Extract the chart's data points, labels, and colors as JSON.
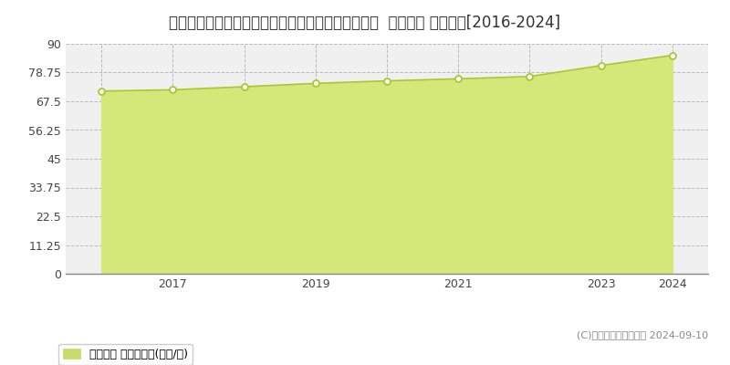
{
  "title": "埼玉県さいたま市緑区太田窪３丁目１１４０番３外  地価公示 地価推移[2016-2024]",
  "years": [
    2016,
    2017,
    2018,
    2019,
    2020,
    2021,
    2022,
    2023,
    2024
  ],
  "values": [
    71.5,
    72.0,
    73.2,
    74.5,
    75.5,
    76.3,
    77.2,
    81.5,
    85.5
  ],
  "yticks": [
    0,
    11.25,
    22.5,
    33.75,
    45,
    56.25,
    67.5,
    78.75,
    90
  ],
  "ylim": [
    0,
    90
  ],
  "shown_xticks": [
    2017,
    2019,
    2021,
    2023,
    2024
  ],
  "xlim_left": 2015.5,
  "xlim_right": 2024.5,
  "line_color": "#a8c832",
  "fill_color": "#d4e87a",
  "fill_alpha": 1.0,
  "marker_color": "white",
  "marker_edge_color": "#a8c832",
  "bg_color": "#ffffff",
  "plot_bg_color": "#f0f0f0",
  "grid_color": "#bbbbbb",
  "legend_label": "地価公示 平均坪単価(万円/坪)",
  "legend_marker_color": "#c8dc6a",
  "copyright_text": "(C)土地価格ドットコム 2024-09-10",
  "title_fontsize": 12,
  "axis_fontsize": 9,
  "legend_fontsize": 9
}
